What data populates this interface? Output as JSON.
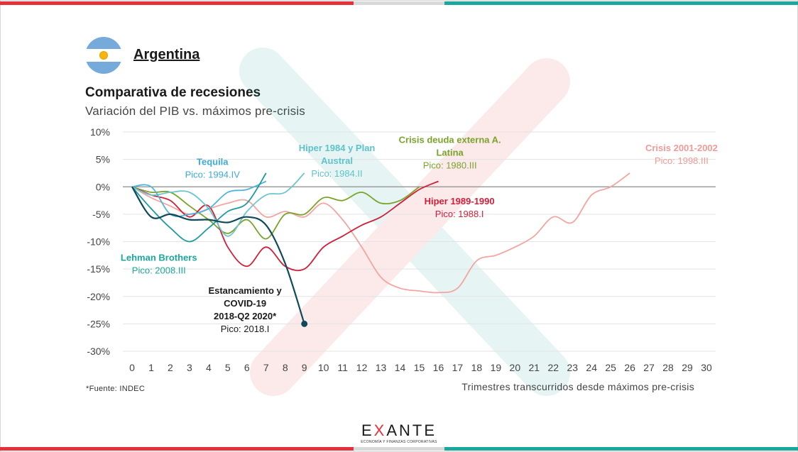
{
  "header": {
    "country": "Argentina",
    "title": "Comparativa de recesiones",
    "subtitle": "Variación del PIB vs. máximos pre-crisis"
  },
  "footer": {
    "source": "*Fuente: INDEC",
    "logo_letters": [
      "E",
      "X",
      "ANTE"
    ],
    "logo_tagline": "ECONOMÍA Y FINANZAS CORPORATIVAS"
  },
  "colors": {
    "stripe_red": "#e8303a",
    "stripe_grey": "#d9d9d9",
    "stripe_teal": "#1aa89a"
  },
  "chart_data": {
    "type": "line",
    "xlabel": "Trimestres transcurridos desde máximos pre-crisis",
    "ylabel": "",
    "xlim": [
      0,
      30
    ],
    "ylim": [
      -30,
      10
    ],
    "x_ticks": [
      0,
      1,
      2,
      3,
      4,
      5,
      6,
      7,
      8,
      9,
      10,
      11,
      12,
      13,
      14,
      15,
      16,
      17,
      18,
      19,
      20,
      21,
      22,
      23,
      24,
      25,
      26,
      27,
      28,
      29,
      30
    ],
    "y_ticks": [
      10,
      5,
      0,
      -5,
      -10,
      -15,
      -20,
      -25,
      -30
    ],
    "y_tick_suffix": "%",
    "grid": "horizontal",
    "series": [
      {
        "name": "Crisis 2001-2002",
        "peak": "Pico: 1998.III",
        "color": "#f4a5a2",
        "x": [
          0,
          1,
          2,
          3,
          4,
          5,
          6,
          7,
          8,
          9,
          10,
          11,
          12,
          13,
          14,
          15,
          16,
          17,
          18,
          19,
          20,
          21,
          22,
          23,
          24,
          25,
          26
        ],
        "y": [
          0,
          -2,
          -3.5,
          -5,
          -4,
          -3,
          -2.5,
          -5.5,
          -4.5,
          -5.5,
          -3,
          -6,
          -11,
          -16.5,
          -18.5,
          -19,
          -19.3,
          -18.5,
          -13.5,
          -12.5,
          -11,
          -9,
          -5.5,
          -6.5,
          -1.5,
          0,
          2.5
        ]
      },
      {
        "name": "Crisis deuda externa A. Latina",
        "peak": "Pico: 1980.III",
        "color": "#7aa32a",
        "x": [
          0,
          1,
          2,
          3,
          4,
          5,
          6,
          7,
          8,
          9,
          10,
          11,
          12,
          13,
          14,
          15
        ],
        "y": [
          0,
          -1,
          -1,
          -3.5,
          -6,
          -8.5,
          -6,
          -9.5,
          -5,
          -5,
          -2,
          -2.5,
          -1,
          -3,
          -2.5,
          0
        ]
      },
      {
        "name": "Hiper 1989-1990",
        "peak": "Pico: 1988.I",
        "color": "#d11f3a",
        "x": [
          0,
          1,
          2,
          3,
          4,
          5,
          6,
          7,
          8,
          9,
          10,
          11,
          12,
          13,
          14,
          15,
          16
        ],
        "y": [
          0,
          -1.5,
          -2.5,
          -5.5,
          -3.5,
          -11,
          -14.5,
          -11,
          -14.5,
          -15,
          -11,
          -9,
          -7,
          -5.5,
          -3,
          -0.5,
          1
        ]
      },
      {
        "name": "Hiper 1984 y Plan Austral",
        "peak": "Pico: 1984.II",
        "color": "#6cc6cf",
        "x": [
          0,
          1,
          2,
          3,
          4,
          5,
          6,
          7,
          8,
          9
        ],
        "y": [
          0,
          -1.5,
          -1,
          -1,
          -4,
          -9,
          -4.5,
          -1.5,
          -1,
          2.5
        ]
      },
      {
        "name": "Tequila",
        "peak": "Pico: 1994.IV",
        "color": "#4fb4dc",
        "x": [
          0,
          1,
          2,
          3,
          4,
          5,
          6,
          7
        ],
        "y": [
          0,
          0,
          -5,
          -5,
          -4,
          -1,
          -0.5,
          1
        ]
      },
      {
        "name": "Lehman Brothers",
        "peak": "Pico: 2008.III",
        "color": "#1d9ba1",
        "x": [
          0,
          1,
          2,
          3,
          4,
          5,
          6,
          7
        ],
        "y": [
          0,
          -4,
          -7.5,
          -10,
          -7.5,
          -4.5,
          -3,
          2.5
        ]
      },
      {
        "name": "Estancamiento y COVID-19 2018-Q2 2020*",
        "peak": "Pico: 2018.I",
        "color": "#0e4a5b",
        "x": [
          0,
          1,
          2,
          3,
          4,
          5,
          6,
          7,
          8,
          9
        ],
        "y": [
          0,
          -5.5,
          -5,
          -6,
          -6,
          -6.5,
          -5.5,
          -7,
          -14,
          -25
        ]
      }
    ],
    "annotations": [
      {
        "series": 5,
        "lines": [
          "Lehman Brothers"
        ],
        "sub": "Pico: 2008.III",
        "color": "#1aa89a",
        "at": [
          1.4,
          -13.5
        ]
      },
      {
        "series": 4,
        "lines": [
          "Tequila"
        ],
        "sub": "Pico: 1994.IV",
        "color": "#3fa9d8",
        "at": [
          4.2,
          4.0
        ]
      },
      {
        "series": 3,
        "lines": [
          "Hiper 1984 y Plan",
          "Austral"
        ],
        "sub": "Pico: 1984.II",
        "color": "#5fc2cb",
        "at": [
          10.7,
          6.5
        ]
      },
      {
        "series": 1,
        "lines": [
          "Crisis deuda externa A.",
          "Latina"
        ],
        "sub": "Pico: 1980.III",
        "color": "#7aa32a",
        "at": [
          16.6,
          8.0
        ]
      },
      {
        "series": 2,
        "lines": [
          "Hiper 1989-1990"
        ],
        "sub": "Pico: 1988.I",
        "color": "#d11f3a",
        "at": [
          17.1,
          -3.2
        ]
      },
      {
        "series": 0,
        "lines": [
          "Crisis 2001-2002"
        ],
        "sub": "Pico: 1998.III",
        "color": "#f09b97",
        "at": [
          28.7,
          6.5
        ]
      },
      {
        "series": 6,
        "lines": [
          "Estancamiento y",
          "COVID-19",
          "2018-Q2 2020*"
        ],
        "sub": "Pico: 2018.I",
        "color": "#1a1a1a",
        "at": [
          5.9,
          -19.5
        ]
      }
    ]
  }
}
